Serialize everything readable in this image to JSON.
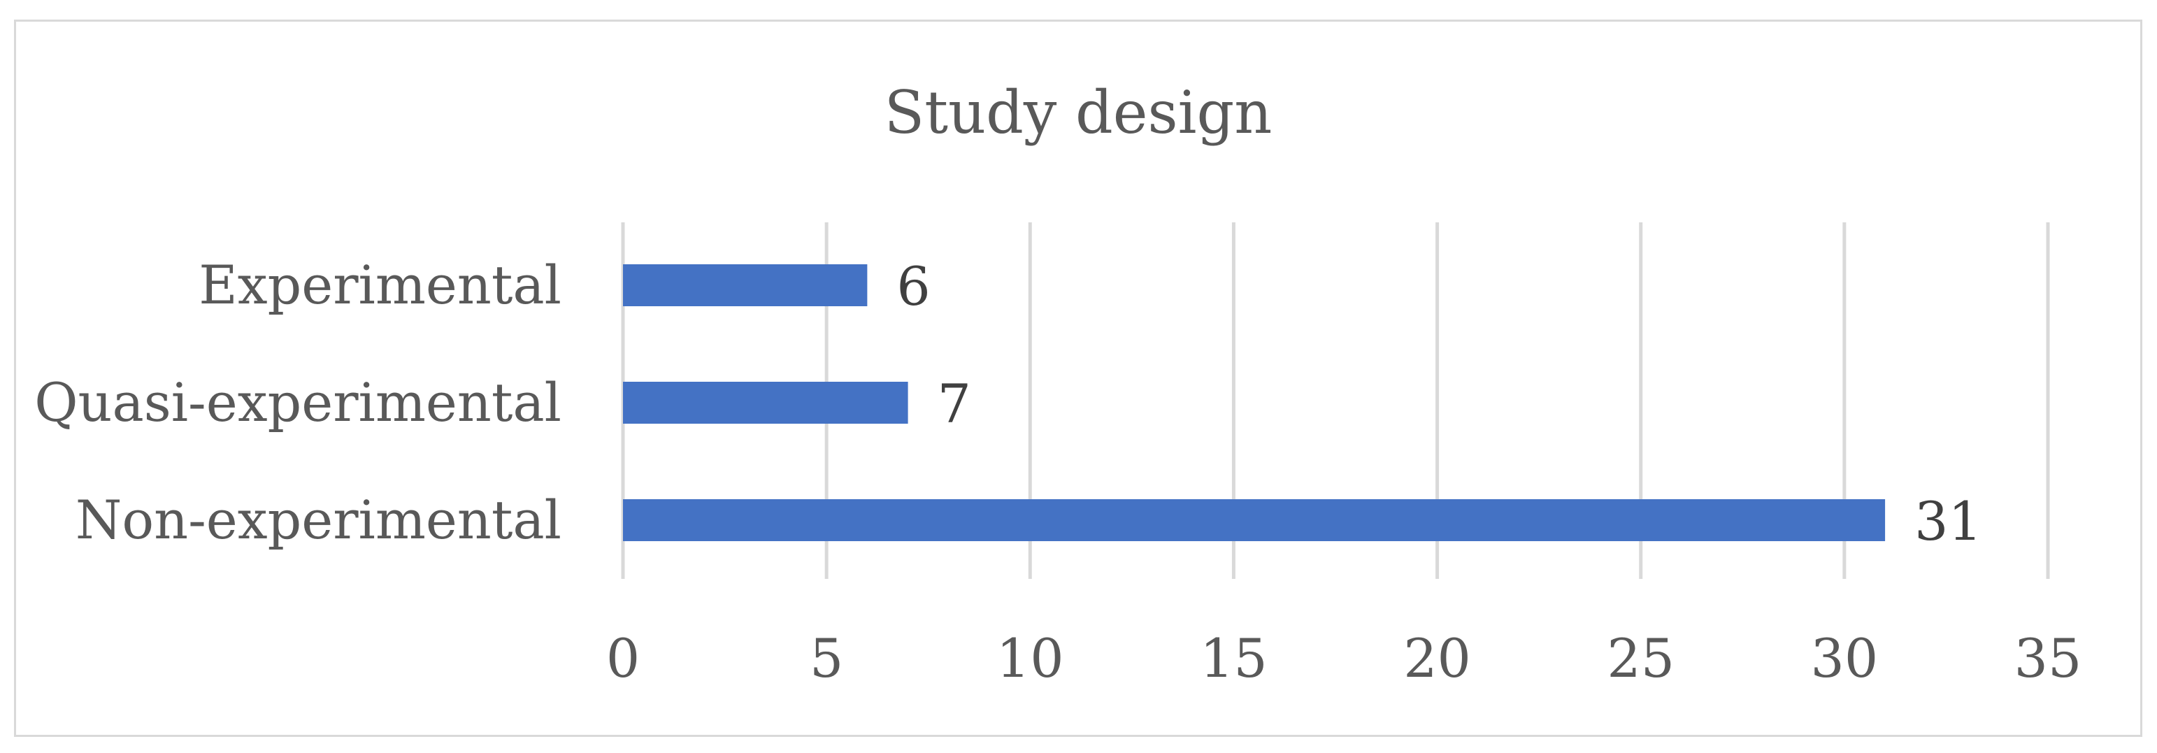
{
  "chart_data": {
    "type": "bar",
    "orientation": "horizontal",
    "title": "Study design",
    "categories": [
      "Experimental",
      "Quasi-experimental",
      "Non-experimental"
    ],
    "values": [
      6,
      7,
      31
    ],
    "data_labels": [
      "6",
      "7",
      "31"
    ],
    "xlim": [
      0,
      35
    ],
    "x_ticks": [
      0,
      5,
      10,
      15,
      20,
      25,
      30,
      35
    ],
    "x_tick_labels": [
      "0",
      "5",
      "10",
      "15",
      "20",
      "25",
      "30",
      "35"
    ],
    "grid": "vertical",
    "legend": "none",
    "bar_color": "#4472c4"
  }
}
